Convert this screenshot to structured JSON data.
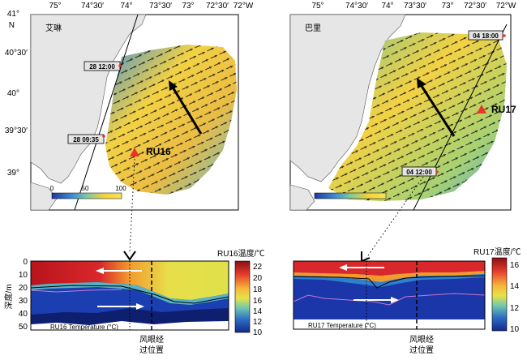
{
  "left_map": {
    "name": "艾琳",
    "lon_ticks": [
      "75°",
      "74°30′",
      "74°",
      "73°30′",
      "73°",
      "72°30′",
      "72°W"
    ],
    "lat_ticks": [
      "41°",
      "N",
      "40°30′",
      "40°",
      "39°30′",
      "39°"
    ],
    "timestamps": [
      "28 12:00",
      "28 09:35"
    ],
    "buoy": "RU16",
    "colorbar_ticks": [
      "0",
      "50",
      "100"
    ]
  },
  "right_map": {
    "name": "巴里",
    "lon_ticks": [
      "75°",
      "74°30′",
      "74°",
      "73°30′",
      "73°",
      "72°30′",
      "72°W"
    ],
    "timestamps": [
      "04 18:00",
      "04 12:00"
    ],
    "buoy": "RU17"
  },
  "left_profile": {
    "colorbar_title": "RU16温度/℃",
    "colorbar_ticks": [
      "22",
      "20",
      "18",
      "16",
      "14",
      "12",
      "10"
    ],
    "y_axis_label": "深度/m",
    "y_ticks": [
      "0",
      "10",
      "20",
      "30",
      "40",
      "50"
    ],
    "caption": "RU16 Temperature (°C)",
    "eye_label_line1": "风眼经",
    "eye_label_line2": "过位置"
  },
  "right_profile": {
    "colorbar_title": "RU17温度/℃",
    "colorbar_ticks": [
      "16",
      "14",
      "12",
      "10"
    ],
    "caption": "RU17 Temperature (°C)",
    "eye_label_line1": "风眼经",
    "eye_label_line2": "过位置"
  },
  "colors": {
    "land": "#e6e6e6",
    "water_bg": "#ffffff",
    "buoy_marker": "#e8362b",
    "warm": "#d9282b",
    "cold": "#1f3fa8",
    "yellow": "#f2d23a"
  }
}
